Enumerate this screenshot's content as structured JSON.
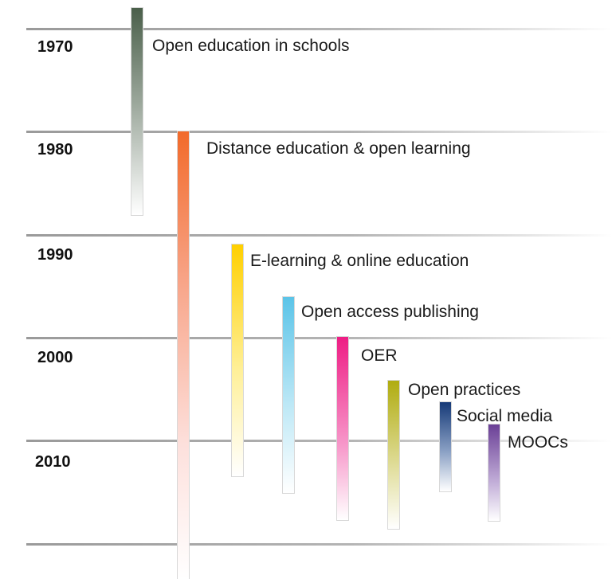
{
  "timeline": {
    "decades": [
      "1970",
      "1980",
      "1990",
      "2000",
      "2010"
    ],
    "bars": [
      {
        "label": "Open education in schools",
        "color": "#4a5f4a"
      },
      {
        "label": "Distance education & open learning",
        "color": "#f26a2a"
      },
      {
        "label": "E-learning & online education",
        "color": "#ffd000"
      },
      {
        "label": "Open access publishing",
        "color": "#5bc4e8"
      },
      {
        "label": "OER",
        "color": "#ee1d84"
      },
      {
        "label": "Open practices",
        "color": "#b0ac10"
      },
      {
        "label": "Social media",
        "color": "#163a78"
      },
      {
        "label": "MOOCs",
        "color": "#6a3f96"
      }
    ]
  }
}
